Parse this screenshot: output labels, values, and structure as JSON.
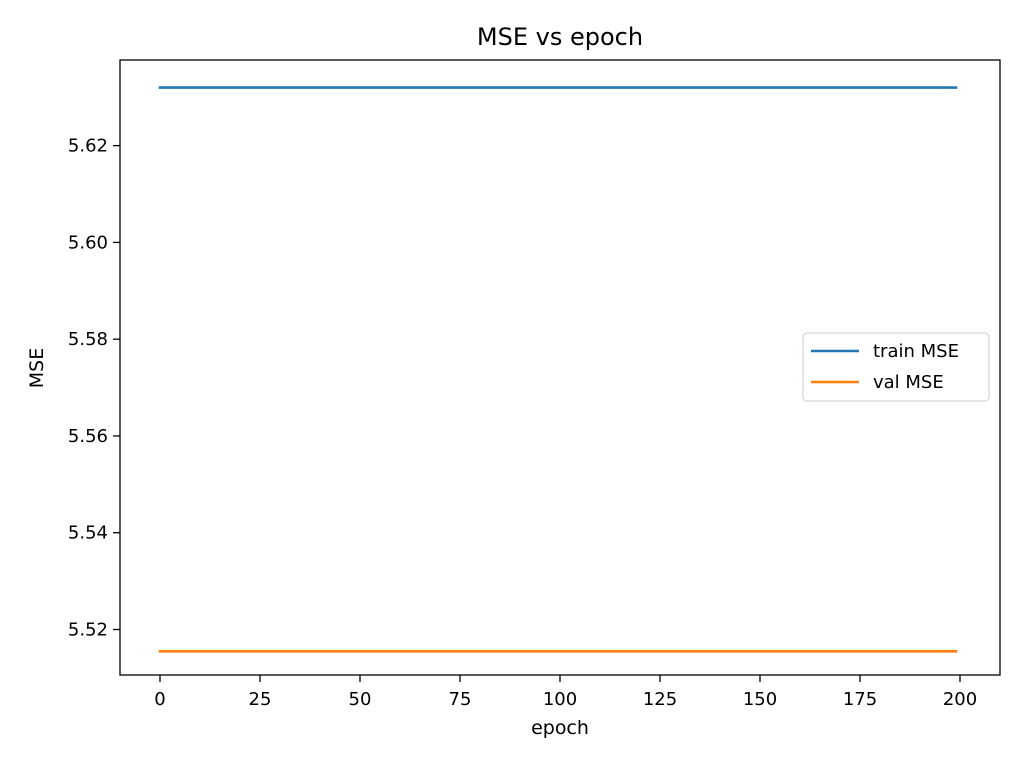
{
  "chart_data": {
    "type": "line",
    "title": "MSE vs epoch",
    "xlabel": "epoch",
    "ylabel": "MSE",
    "xlim": [
      -10,
      210
    ],
    "ylim": [
      5.5106,
      5.6377
    ],
    "xticks": [
      0,
      25,
      50,
      75,
      100,
      125,
      150,
      175,
      200
    ],
    "xtick_labels": [
      "0",
      "25",
      "50",
      "75",
      "100",
      "125",
      "150",
      "175",
      "200"
    ],
    "yticks": [
      5.52,
      5.54,
      5.56,
      5.58,
      5.6,
      5.62
    ],
    "ytick_labels": [
      "5.52",
      "5.54",
      "5.56",
      "5.58",
      "5.60",
      "5.62"
    ],
    "grid": false,
    "legend_position": "center-right",
    "series": [
      {
        "name": "train MSE",
        "color": "#1f77b4",
        "x": [
          0,
          199
        ],
        "y": [
          5.632,
          5.632
        ]
      },
      {
        "name": "val MSE",
        "color": "#ff7f0e",
        "x": [
          0,
          199
        ],
        "y": [
          5.5155,
          5.5155
        ]
      }
    ]
  }
}
